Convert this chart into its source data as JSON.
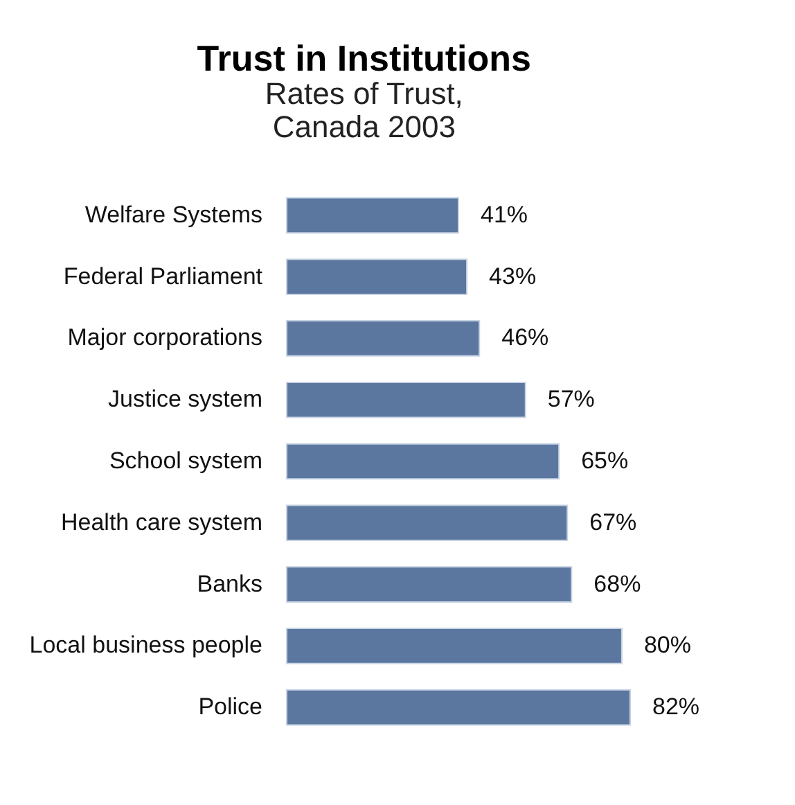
{
  "chart_data": {
    "type": "bar",
    "orientation": "horizontal",
    "title": "Trust in Institutions",
    "subtitle": "Rates of Trust,\nCanada 2003",
    "categories": [
      "Welfare Systems",
      "Federal Parliament",
      "Major corporations",
      "Justice system",
      "School system",
      "Health care system",
      "Banks",
      "Local business people",
      "Police"
    ],
    "values": [
      41,
      43,
      46,
      57,
      65,
      67,
      68,
      80,
      82
    ],
    "value_labels": [
      "41%",
      "43%",
      "46%",
      "57%",
      "65%",
      "67%",
      "68%",
      "80%",
      "82%"
    ],
    "color": "#5b77a0"
  }
}
